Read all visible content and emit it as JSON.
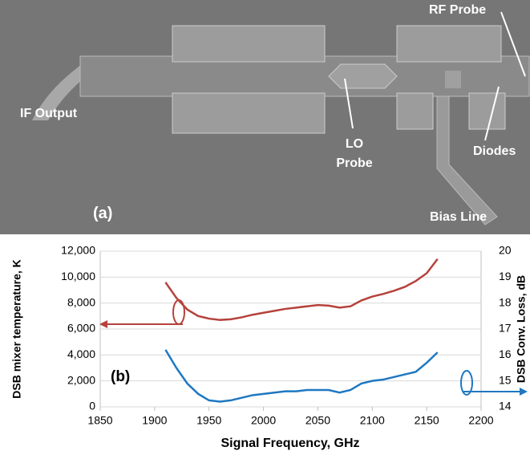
{
  "figure_a": {
    "label": "(a)",
    "annotations": [
      "RF Probe",
      "IF Output",
      "LO Probe",
      "Diodes",
      "Bias Line"
    ]
  },
  "chart_data": {
    "type": "line",
    "label": "(b)",
    "xlabel": "Signal Frequency, GHz",
    "ylabel": "DSB mixer temperature, K",
    "y2label": "DSB Conv. Loss, dB",
    "x": [
      1910,
      1920,
      1930,
      1940,
      1950,
      1960,
      1970,
      1980,
      1990,
      2000,
      2010,
      2020,
      2030,
      2040,
      2050,
      2060,
      2070,
      2080,
      2090,
      2100,
      2110,
      2120,
      2130,
      2140,
      2150,
      2160
    ],
    "series": [
      {
        "color": "#b5423c",
        "axis": "y",
        "values": [
          9600,
          8400,
          7500,
          7000,
          6800,
          6700,
          6750,
          6900,
          7100,
          7250,
          7400,
          7550,
          7650,
          7750,
          7850,
          7800,
          7650,
          7750,
          8200,
          8500,
          8700,
          8950,
          9250,
          9700,
          10300,
          11400
        ]
      },
      {
        "color": "#1f78c1",
        "axis": "y2",
        "values": [
          16.2,
          15.5,
          14.9,
          14.5,
          14.25,
          14.2,
          14.25,
          14.35,
          14.45,
          14.5,
          14.55,
          14.6,
          14.6,
          14.65,
          14.65,
          14.65,
          14.55,
          14.65,
          14.9,
          15.0,
          15.05,
          15.15,
          15.25,
          15.35,
          15.7,
          16.1
        ]
      }
    ],
    "xlim": [
      1850,
      2200
    ],
    "xticks": [
      1850,
      1900,
      1950,
      2000,
      2050,
      2100,
      2150,
      2200
    ],
    "ylim": [
      0,
      12000
    ],
    "yticks": [
      0,
      {
        "value": 2000,
        "label": "2,000"
      },
      {
        "value": 4000,
        "label": "4,000"
      },
      {
        "value": 6000,
        "label": "6,000"
      },
      {
        "value": 8000,
        "label": "8,000"
      },
      {
        "value": 10000,
        "label": "10,000"
      },
      {
        "value": 12000,
        "label": "12,000"
      }
    ],
    "y2lim": [
      14,
      20
    ],
    "y2ticks": [
      14,
      15,
      16,
      17,
      18,
      19,
      20
    ],
    "grid": true
  }
}
